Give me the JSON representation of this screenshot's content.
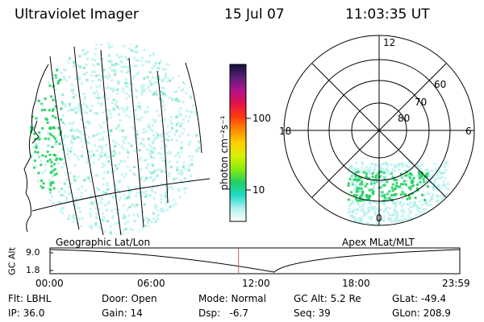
{
  "header": {
    "title": "Ultraviolet Imager",
    "date": "15 Jul 07",
    "time": "11:03:35 UT"
  },
  "colorbar": {
    "unit_label": "photon cm⁻²s⁻¹",
    "ticks": [
      "100",
      "10"
    ],
    "gradient": [
      "#10103a",
      "#5a1f7a",
      "#b0128a",
      "#e3124a",
      "#ff3a10",
      "#ff8a00",
      "#ffd000",
      "#d9f000",
      "#8cea10",
      "#22d060",
      "#22d8c8",
      "#aef0ee",
      "#ffffff"
    ]
  },
  "left_map": {
    "caption": "Geographic Lat/Lon"
  },
  "right_map": {
    "caption": "Apex MLat/MLT",
    "mlt_labels": {
      "top": "12",
      "left": "18",
      "right": "6",
      "bottom": "0"
    },
    "lat_labels": [
      "60",
      "70",
      "80"
    ]
  },
  "gc_alt": {
    "axis_label": "GC Alt",
    "y_ticks": [
      "9.0",
      "1.8"
    ],
    "x_ticks": [
      "00:00",
      "06:00",
      "12:00",
      "18:00",
      "23:59"
    ],
    "current_time_fraction": 0.46
  },
  "info": {
    "row1": [
      "Flt: LBHL",
      "Door: Open",
      "Mode: Normal",
      "GC Alt: 5.2 Re",
      "GLat: -49.4"
    ],
    "row2": [
      "IP: 36.0",
      "Gain: 14",
      "Dsp:   -6.7",
      "Seq: 39",
      "GLon: 208.9"
    ]
  },
  "colors": {
    "aurora": "#22d060",
    "diffuse": "#aef0ee",
    "marker": "#c86060"
  }
}
